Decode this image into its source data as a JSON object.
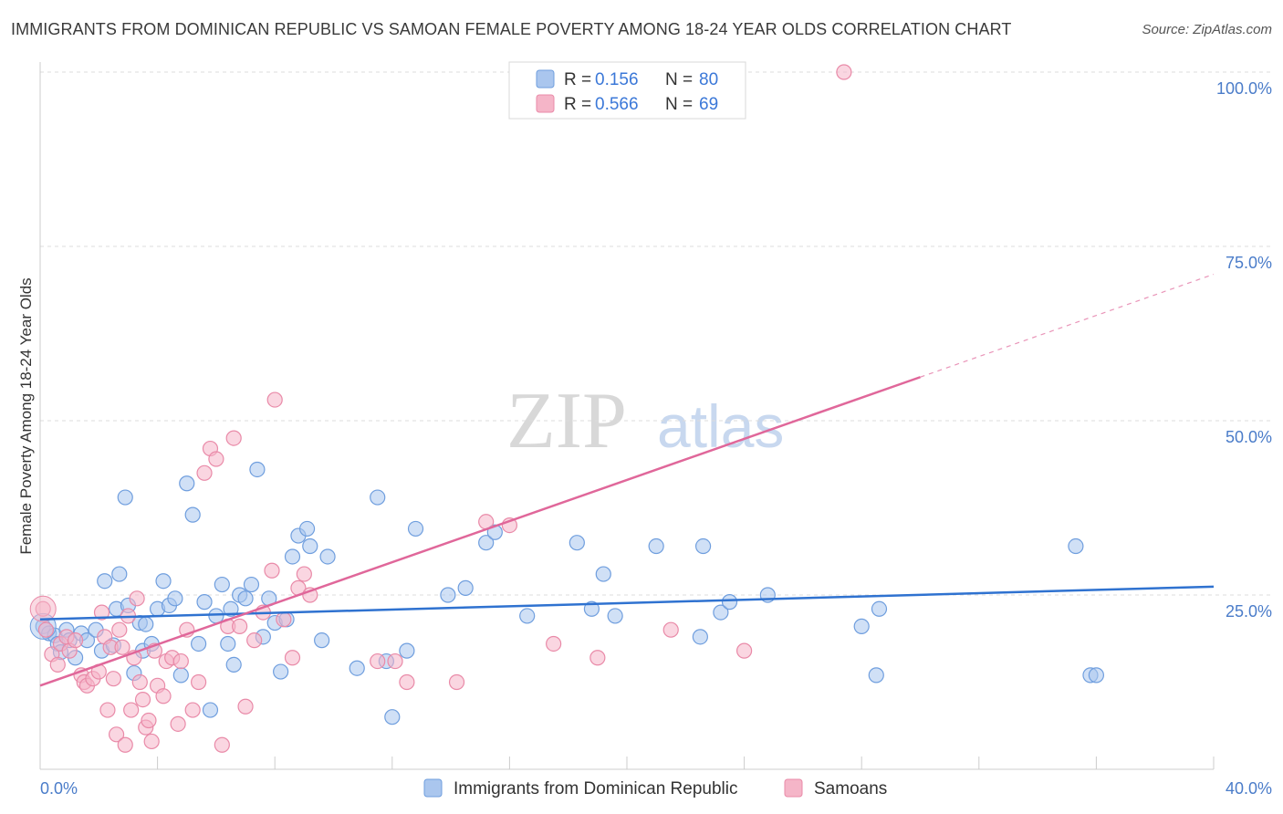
{
  "header": {
    "title": "IMMIGRANTS FROM DOMINICAN REPUBLIC VS SAMOAN FEMALE POVERTY AMONG 18-24 YEAR OLDS CORRELATION CHART",
    "source": "Source: ZipAtlas.com"
  },
  "watermark": {
    "zip": "ZIP",
    "atlas": "atlas"
  },
  "colors": {
    "blue_fill": "#aac6ee",
    "blue_stroke": "#6f9ede",
    "blue_line": "#2f72d0",
    "pink_fill": "#f5b5c8",
    "pink_stroke": "#e98aa8",
    "pink_line": "#e0679a",
    "tick_text": "#4a7cc9",
    "grid": "#dddddd"
  },
  "legend": {
    "rows": [
      {
        "r_label": "R =",
        "r_value": "0.156",
        "n_label": "N =",
        "n_value": "80"
      },
      {
        "r_label": "R =",
        "r_value": "0.566",
        "n_label": "N =",
        "n_value": "69"
      }
    ]
  },
  "bottom_legend": {
    "items": [
      {
        "label": "Immigrants from Dominican Republic"
      },
      {
        "label": "Samoans"
      }
    ]
  },
  "chart_data": {
    "type": "scatter",
    "title": "IMMIGRANTS FROM DOMINICAN REPUBLIC VS SAMOAN FEMALE POVERTY AMONG 18-24 YEAR OLDS CORRELATION CHART",
    "xlabel": "",
    "ylabel": "Female Poverty Among 18-24 Year Olds",
    "xlim": [
      0,
      40
    ],
    "ylim": [
      0,
      100
    ],
    "x_tick_labels": [
      "0.0%",
      "40.0%"
    ],
    "y_ticks": [
      25,
      50,
      75,
      100
    ],
    "y_tick_labels": [
      "25.0%",
      "50.0%",
      "75.0%",
      "100.0%"
    ],
    "series": [
      {
        "name": "Immigrants from Dominican Republic",
        "R": 0.156,
        "N": 80,
        "trend": {
          "x0": 0,
          "y0": 21.5,
          "x1": 40,
          "y1": 26.2
        },
        "points": [
          [
            0.1,
            20.5
          ],
          [
            0.3,
            19.5
          ],
          [
            0.5,
            19.2
          ],
          [
            0.6,
            18.0
          ],
          [
            0.7,
            16.8
          ],
          [
            0.9,
            20.0
          ],
          [
            1.0,
            18.5
          ],
          [
            1.2,
            16.0
          ],
          [
            1.4,
            19.5
          ],
          [
            1.6,
            18.5
          ],
          [
            1.9,
            20.0
          ],
          [
            2.1,
            17.0
          ],
          [
            2.2,
            27.0
          ],
          [
            2.5,
            17.8
          ],
          [
            2.6,
            23.0
          ],
          [
            2.7,
            28.0
          ],
          [
            2.9,
            39.0
          ],
          [
            3.0,
            23.5
          ],
          [
            3.2,
            13.8
          ],
          [
            3.4,
            21.0
          ],
          [
            3.5,
            17.0
          ],
          [
            3.6,
            20.8
          ],
          [
            3.8,
            18.0
          ],
          [
            4.0,
            23.0
          ],
          [
            4.2,
            27.0
          ],
          [
            4.4,
            23.5
          ],
          [
            4.6,
            24.5
          ],
          [
            4.8,
            13.5
          ],
          [
            5.0,
            41.0
          ],
          [
            5.2,
            36.5
          ],
          [
            5.4,
            18.0
          ],
          [
            5.6,
            24.0
          ],
          [
            5.8,
            8.5
          ],
          [
            6.0,
            22.0
          ],
          [
            6.2,
            26.5
          ],
          [
            6.4,
            18.0
          ],
          [
            6.5,
            23.0
          ],
          [
            6.6,
            15.0
          ],
          [
            6.8,
            25.0
          ],
          [
            7.0,
            24.5
          ],
          [
            7.2,
            26.5
          ],
          [
            7.4,
            43.0
          ],
          [
            7.6,
            19.0
          ],
          [
            7.8,
            24.5
          ],
          [
            8.0,
            21.0
          ],
          [
            8.2,
            14.0
          ],
          [
            8.4,
            21.5
          ],
          [
            8.6,
            30.5
          ],
          [
            8.8,
            33.5
          ],
          [
            9.1,
            34.5
          ],
          [
            9.2,
            32.0
          ],
          [
            9.6,
            18.5
          ],
          [
            9.8,
            30.5
          ],
          [
            10.8,
            14.5
          ],
          [
            11.5,
            39.0
          ],
          [
            11.8,
            15.5
          ],
          [
            12.0,
            7.5
          ],
          [
            12.5,
            17.0
          ],
          [
            12.8,
            34.5
          ],
          [
            13.9,
            25.0
          ],
          [
            14.5,
            26.0
          ],
          [
            15.2,
            32.5
          ],
          [
            15.5,
            34.0
          ],
          [
            16.6,
            22.0
          ],
          [
            18.3,
            32.5
          ],
          [
            18.8,
            23.0
          ],
          [
            19.2,
            28.0
          ],
          [
            19.6,
            22.0
          ],
          [
            21.0,
            32.0
          ],
          [
            22.5,
            19.0
          ],
          [
            22.6,
            32.0
          ],
          [
            23.2,
            22.5
          ],
          [
            23.5,
            24.0
          ],
          [
            24.8,
            25.0
          ],
          [
            28.0,
            20.5
          ],
          [
            28.5,
            13.5
          ],
          [
            28.6,
            23.0
          ],
          [
            35.3,
            32.0
          ],
          [
            35.8,
            13.5
          ],
          [
            36.0,
            13.5
          ]
        ]
      },
      {
        "name": "Samoans",
        "R": 0.566,
        "N": 69,
        "trend": {
          "x0": 0,
          "y0": 12.0,
          "x1": 40,
          "y1": 71.0,
          "solid_until_x": 30
        },
        "points": [
          [
            0.1,
            23.0
          ],
          [
            0.2,
            20.0
          ],
          [
            0.4,
            16.5
          ],
          [
            0.6,
            15.0
          ],
          [
            0.7,
            18.0
          ],
          [
            0.9,
            19.0
          ],
          [
            1.0,
            17.0
          ],
          [
            1.2,
            18.5
          ],
          [
            1.4,
            13.5
          ],
          [
            1.5,
            12.5
          ],
          [
            1.6,
            12.0
          ],
          [
            1.8,
            13.0
          ],
          [
            2.0,
            14.0
          ],
          [
            2.1,
            22.5
          ],
          [
            2.2,
            19.0
          ],
          [
            2.3,
            8.5
          ],
          [
            2.4,
            17.5
          ],
          [
            2.5,
            13.0
          ],
          [
            2.6,
            5.0
          ],
          [
            2.7,
            20.0
          ],
          [
            2.8,
            17.5
          ],
          [
            2.9,
            3.5
          ],
          [
            3.0,
            22.0
          ],
          [
            3.1,
            8.5
          ],
          [
            3.2,
            16.0
          ],
          [
            3.3,
            24.5
          ],
          [
            3.4,
            12.5
          ],
          [
            3.5,
            10.0
          ],
          [
            3.6,
            6.0
          ],
          [
            3.7,
            7.0
          ],
          [
            3.8,
            4.0
          ],
          [
            3.9,
            17.0
          ],
          [
            4.0,
            12.0
          ],
          [
            4.2,
            10.5
          ],
          [
            4.3,
            15.5
          ],
          [
            4.5,
            16.0
          ],
          [
            4.7,
            6.5
          ],
          [
            4.8,
            15.5
          ],
          [
            5.0,
            20.0
          ],
          [
            5.2,
            8.5
          ],
          [
            5.4,
            12.5
          ],
          [
            5.6,
            42.5
          ],
          [
            5.8,
            46.0
          ],
          [
            6.0,
            44.5
          ],
          [
            6.2,
            3.5
          ],
          [
            6.4,
            20.5
          ],
          [
            6.6,
            47.5
          ],
          [
            6.8,
            20.5
          ],
          [
            7.0,
            9.0
          ],
          [
            7.3,
            18.5
          ],
          [
            7.6,
            22.5
          ],
          [
            7.9,
            28.5
          ],
          [
            8.0,
            53.0
          ],
          [
            8.3,
            21.5
          ],
          [
            8.6,
            16.0
          ],
          [
            8.8,
            26.0
          ],
          [
            9.0,
            28.0
          ],
          [
            9.2,
            25.0
          ],
          [
            11.5,
            15.5
          ],
          [
            12.1,
            15.5
          ],
          [
            12.5,
            12.5
          ],
          [
            14.2,
            12.5
          ],
          [
            15.2,
            35.5
          ],
          [
            16.0,
            35.0
          ],
          [
            17.5,
            18.0
          ],
          [
            19.0,
            16.0
          ],
          [
            21.5,
            20.0
          ],
          [
            24.0,
            17.0
          ],
          [
            27.4,
            100.0
          ]
        ]
      }
    ]
  }
}
